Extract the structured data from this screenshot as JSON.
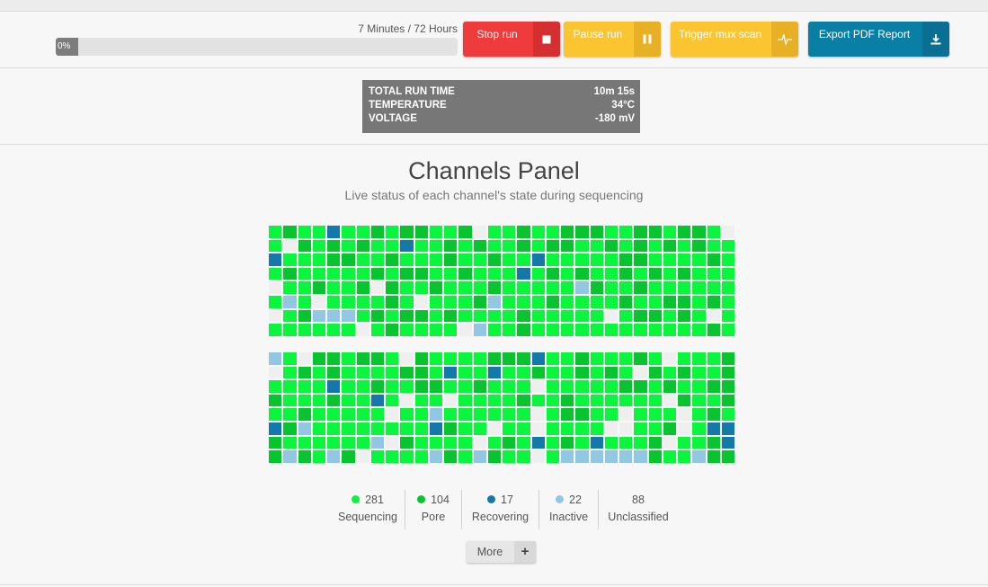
{
  "run": {
    "elapsed_label": "7 Minutes / 72 Hours",
    "progress_percent_label": "0%",
    "progress_fraction": 0
  },
  "buttons": {
    "stop": "Stop run",
    "pause": "Pause run",
    "mux": "Trigger mux scan",
    "export": "Export PDF Report",
    "icons": {
      "stop": "stop-square-icon",
      "pause": "pause-icon",
      "mux": "pulse-waveform-icon",
      "export": "download-icon"
    }
  },
  "stats": [
    {
      "label": "TOTAL RUN TIME",
      "value": "10m 15s"
    },
    {
      "label": "TEMPERATURE",
      "value": "34°C"
    },
    {
      "label": "VOLTAGE",
      "value": "-180 mV"
    }
  ],
  "panel": {
    "title": "Channels Panel",
    "subtitle": "Live status of each channel's state during sequencing"
  },
  "state_colors": {
    "S": "#0bf53f",
    "P": "#07c42f",
    "R": "#1479a8",
    "I": "#91c7e3",
    "U": "#efefef"
  },
  "grid_top": [
    "SPSSRSSPSPPSSPUSSPSSPPPSSPPSPPSU",
    "SUPSPSPSSRSSPSPSSPSPPSSPSPSPSPSS",
    "RSSSPPSSPSSSPSSPSSRSSSSSPPSSSSPS",
    "SPSSSSSPSPPSSPSSSRSPSPSSPSPSPSSS",
    "USSPSSPUPSSPSSSPSSSSSIPSSPSSSSSS",
    "SISUSSSSPSUSSSPISSSPSSSSPSSPPSPS",
    "USPIIISPSPPSPSSSSPSSSSSUSPPSPSUS",
    "SSSSSSUSPSSSSUISSPSSSSSSSSSSSSPS"
  ],
  "grid_bottom": [
    "ISUPPSPPSUPSSSSPPPRSSPSSSPSUSSSP",
    "USPSPSSSSPPSRSSRSSPSSPSPSUPSPSSP",
    "SSSSRSSPSSPPSSPSSSUSSSSSPPSPSSPP",
    "PSSSPSSRSUSSUSSSSPSSPSSSSSSUPSSP",
    "SSPSSSSSUSSISSSSSSUSPPSSUSSSUSPS",
    "RPISSSSSSSSRPSSUSSUSSSSUUSSPUSRR",
    "PSSSSSSIUPSSSSUSPSRSPSRSSSPUSSPR",
    "PIPSIPUSSSSIPSIPSSUSIIIIIIPSSIPP"
  ],
  "legend": [
    {
      "count": "281",
      "label": "Sequencing",
      "color": "#0bf53f"
    },
    {
      "count": "104",
      "label": "Pore",
      "color": "#07c42f"
    },
    {
      "count": "17",
      "label": "Recovering",
      "color": "#1479a8"
    },
    {
      "count": "22",
      "label": "Inactive",
      "color": "#91c7e3"
    },
    {
      "count": "88",
      "label": "Unclassified"
    }
  ],
  "more_label": "More"
}
